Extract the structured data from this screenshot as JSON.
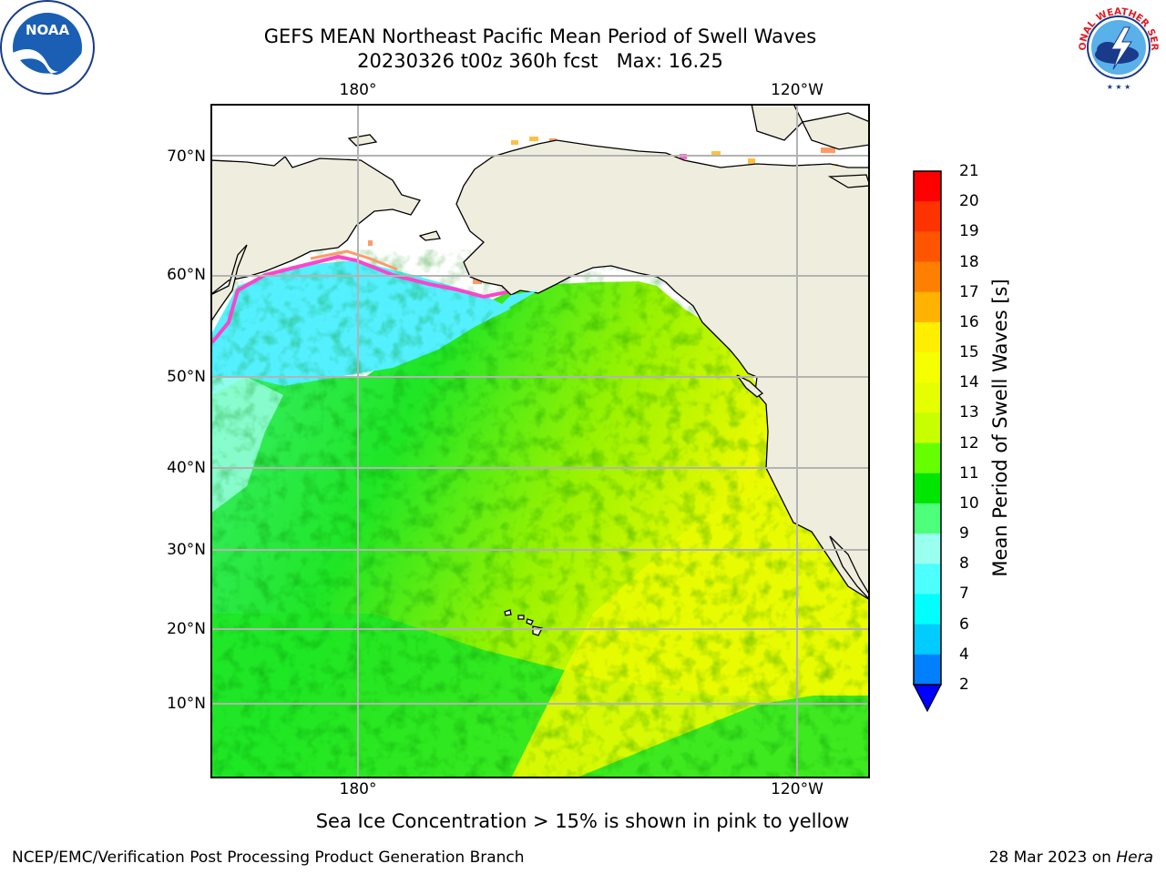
{
  "header": {
    "title_line1": "GEFS MEAN Northeast Pacific Mean Period of Swell Waves",
    "title_line2": "20230326 t00z 360h fcst   Max: 16.25"
  },
  "logos": {
    "left": {
      "icon": "noaa-logo-icon",
      "text": "NOAA"
    },
    "right": {
      "icon": "nws-logo-icon",
      "text": "NATIONAL WEATHER SERVICE"
    }
  },
  "map": {
    "lat_ticks": [
      "70°N",
      "60°N",
      "50°N",
      "40°N",
      "30°N",
      "20°N",
      "10°N"
    ],
    "lon_ticks_top": [
      "180°",
      "120°W"
    ],
    "lon_ticks_bottom": [
      "180°",
      "120°W"
    ],
    "colors": {
      "land": "#efedde",
      "ocean_ice_free": "#ffffff",
      "grid": "#b3b3b3",
      "coast": "#000000"
    }
  },
  "colorbar": {
    "label": "Mean Period of Swell Waves [s]",
    "ticks": [
      "21",
      "20",
      "19",
      "18",
      "17",
      "16",
      "15",
      "14",
      "13",
      "12",
      "11",
      "10",
      "9",
      "8",
      "7",
      "6",
      "4",
      "2"
    ],
    "colors": [
      "#ff0000",
      "#ff3300",
      "#ff5500",
      "#ff8000",
      "#ffb300",
      "#ffee00",
      "#f6ff00",
      "#e6ff00",
      "#c8ff00",
      "#66ff00",
      "#00e600",
      "#4dff7a",
      "#99ffee",
      "#4dffff",
      "#00ffff",
      "#00ccff",
      "#0080ff"
    ],
    "extend_color": "#0000ff"
  },
  "notes": {
    "sea_ice": "Sea Ice Concentration > 15% is shown in pink to yellow"
  },
  "footer": {
    "left": "NCEP/EMC/Verification Post Processing Product Generation Branch",
    "right_date": "28 Mar 2023 on ",
    "right_host": "Hera"
  }
}
